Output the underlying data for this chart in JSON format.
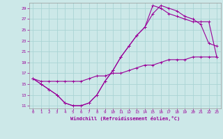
{
  "xlabel": "Windchill (Refroidissement éolien,°C)",
  "bg_color": "#cce8e8",
  "grid_color": "#aad4d4",
  "line_color": "#990099",
  "xlim": [
    -0.5,
    23.5
  ],
  "ylim": [
    10.5,
    30
  ],
  "xticks": [
    0,
    1,
    2,
    3,
    4,
    5,
    6,
    7,
    8,
    9,
    10,
    11,
    12,
    13,
    14,
    15,
    16,
    17,
    18,
    19,
    20,
    21,
    22,
    23
  ],
  "yticks": [
    11,
    13,
    15,
    17,
    19,
    21,
    23,
    25,
    27,
    29
  ],
  "curve1_x": [
    0,
    1,
    2,
    3,
    4,
    5,
    6,
    7,
    8,
    9,
    10,
    11,
    12,
    13,
    14,
    15,
    16,
    17,
    18,
    19,
    20,
    21,
    22,
    23
  ],
  "curve1_y": [
    16.0,
    15.0,
    14.0,
    13.0,
    11.5,
    11.0,
    11.0,
    11.5,
    13.0,
    15.5,
    17.5,
    20.0,
    22.0,
    24.0,
    25.5,
    28.0,
    29.5,
    29.0,
    28.5,
    27.5,
    27.0,
    26.0,
    22.5,
    22.0
  ],
  "curve2_x": [
    0,
    1,
    2,
    3,
    4,
    5,
    6,
    7,
    8,
    9,
    10,
    11,
    12,
    13,
    14,
    15,
    16,
    17,
    18,
    19,
    20,
    21,
    22,
    23
  ],
  "curve2_y": [
    16.0,
    15.0,
    14.0,
    13.0,
    11.5,
    11.0,
    11.0,
    11.5,
    13.0,
    15.5,
    17.5,
    20.0,
    22.0,
    24.0,
    25.5,
    29.5,
    29.0,
    28.0,
    27.5,
    27.0,
    26.5,
    26.5,
    26.5,
    20.0
  ],
  "curve3_x": [
    0,
    1,
    2,
    3,
    4,
    5,
    6,
    7,
    8,
    9,
    10,
    11,
    12,
    13,
    14,
    15,
    16,
    17,
    18,
    19,
    20,
    21,
    22,
    23
  ],
  "curve3_y": [
    16.0,
    15.5,
    15.5,
    15.5,
    15.5,
    15.5,
    15.5,
    16.0,
    16.5,
    16.5,
    17.0,
    17.0,
    17.5,
    18.0,
    18.5,
    18.5,
    19.0,
    19.5,
    19.5,
    19.5,
    20.0,
    20.0,
    20.0,
    20.0
  ]
}
